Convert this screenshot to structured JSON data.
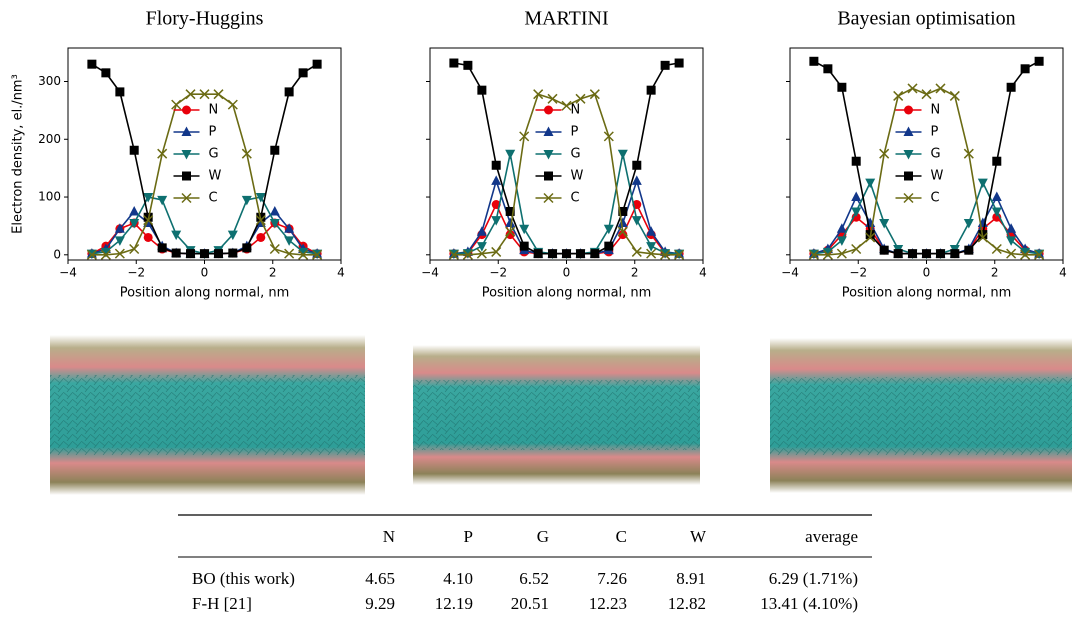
{
  "chart_data": [
    {
      "type": "line",
      "title": "Flory-Huggins",
      "xlabel": "Position along normal, nm",
      "ylabel": "Electron density, el./nm³",
      "x": [
        -3.3,
        -2.89,
        -2.48,
        -2.06,
        -1.65,
        -1.24,
        -0.83,
        -0.41,
        0,
        0.41,
        0.83,
        1.24,
        1.65,
        2.06,
        2.48,
        2.89,
        3.3
      ],
      "xlim": [
        -4,
        4
      ],
      "xticks": [
        {
          "value": -4,
          "label": "−4"
        },
        {
          "value": -2,
          "label": "−2"
        },
        0,
        2,
        4
      ],
      "ylim": [
        -9,
        358
      ],
      "yticks": [
        0,
        100,
        200,
        300
      ],
      "ytick_labels": true,
      "legend": "center",
      "series": [
        {
          "name": "N",
          "color": "#e8000b",
          "marker": "circle",
          "values": [
            2,
            15,
            45,
            55,
            30,
            10,
            3,
            2,
            2,
            2,
            3,
            10,
            30,
            55,
            45,
            15,
            2
          ]
        },
        {
          "name": "P",
          "color": "#12378a",
          "marker": "triangle-up",
          "values": [
            2,
            10,
            45,
            75,
            55,
            15,
            3,
            2,
            2,
            2,
            3,
            15,
            55,
            75,
            45,
            10,
            2
          ]
        },
        {
          "name": "G",
          "color": "#0e7070",
          "marker": "triangle-down",
          "values": [
            2,
            5,
            25,
            55,
            100,
            95,
            35,
            8,
            2,
            8,
            35,
            95,
            100,
            55,
            25,
            5,
            2
          ]
        },
        {
          "name": "W",
          "color": "#000000",
          "marker": "square",
          "values": [
            330,
            315,
            282,
            181,
            65,
            12,
            3,
            2,
            2,
            2,
            3,
            12,
            65,
            181,
            282,
            315,
            330
          ]
        },
        {
          "name": "C",
          "color": "#6b6b14",
          "marker": "x",
          "values": [
            0,
            0,
            2,
            10,
            60,
            175,
            260,
            278,
            278,
            278,
            260,
            175,
            60,
            10,
            2,
            0,
            0
          ]
        }
      ]
    },
    {
      "type": "line",
      "title": "MARTINI",
      "xlabel": "Position along normal, nm",
      "x": [
        -3.3,
        -2.89,
        -2.48,
        -2.06,
        -1.65,
        -1.24,
        -0.83,
        -0.41,
        0,
        0.41,
        0.83,
        1.24,
        1.65,
        2.06,
        2.48,
        2.89,
        3.3
      ],
      "xlim": [
        -4,
        4
      ],
      "xticks": [
        {
          "value": -4,
          "label": "−4"
        },
        {
          "value": -2,
          "label": "−2"
        },
        0,
        2,
        4
      ],
      "ylim": [
        -9,
        358
      ],
      "yticks": [
        0,
        100,
        200,
        300
      ],
      "ytick_labels": false,
      "legend": "center",
      "series": [
        {
          "name": "N",
          "color": "#e8000b",
          "marker": "circle",
          "values": [
            2,
            3,
            35,
            87,
            35,
            5,
            2,
            2,
            2,
            2,
            2,
            5,
            35,
            87,
            35,
            3,
            2
          ]
        },
        {
          "name": "P",
          "color": "#12378a",
          "marker": "triangle-up",
          "values": [
            2,
            5,
            40,
            128,
            55,
            8,
            2,
            2,
            2,
            2,
            2,
            8,
            55,
            128,
            40,
            5,
            2
          ]
        },
        {
          "name": "G",
          "color": "#0e7070",
          "marker": "triangle-down",
          "values": [
            2,
            3,
            15,
            60,
            175,
            45,
            5,
            2,
            2,
            2,
            5,
            45,
            175,
            60,
            15,
            3,
            2
          ]
        },
        {
          "name": "W",
          "color": "#000000",
          "marker": "square",
          "values": [
            332,
            328,
            285,
            155,
            75,
            15,
            2,
            2,
            2,
            2,
            2,
            15,
            75,
            155,
            285,
            328,
            332
          ]
        },
        {
          "name": "C",
          "color": "#6b6b14",
          "marker": "x",
          "values": [
            0,
            0,
            2,
            5,
            40,
            205,
            278,
            270,
            258,
            270,
            278,
            205,
            40,
            5,
            2,
            0,
            0
          ]
        }
      ]
    },
    {
      "type": "line",
      "title": "Bayesian optimisation",
      "xlabel": "Position along normal, nm",
      "x": [
        -3.3,
        -2.89,
        -2.48,
        -2.06,
        -1.65,
        -1.24,
        -0.83,
        -0.41,
        0,
        0.41,
        0.83,
        1.24,
        1.65,
        2.06,
        2.48,
        2.89,
        3.3
      ],
      "xlim": [
        -4,
        4
      ],
      "xticks": [
        {
          "value": -4,
          "label": "−4"
        },
        {
          "value": -2,
          "label": "−2"
        },
        0,
        2,
        4
      ],
      "ylim": [
        -9,
        358
      ],
      "yticks": [
        0,
        100,
        200,
        300
      ],
      "ytick_labels": false,
      "legend": "center",
      "series": [
        {
          "name": "N",
          "color": "#e8000b",
          "marker": "circle",
          "values": [
            2,
            8,
            35,
            65,
            45,
            8,
            2,
            2,
            2,
            2,
            2,
            8,
            45,
            65,
            35,
            8,
            2
          ]
        },
        {
          "name": "P",
          "color": "#12378a",
          "marker": "triangle-up",
          "values": [
            2,
            10,
            45,
            100,
            55,
            10,
            2,
            2,
            2,
            2,
            2,
            10,
            55,
            100,
            45,
            10,
            2
          ]
        },
        {
          "name": "G",
          "color": "#0e7070",
          "marker": "triangle-down",
          "values": [
            2,
            5,
            25,
            75,
            125,
            55,
            10,
            2,
            2,
            2,
            10,
            55,
            125,
            75,
            25,
            5,
            2
          ]
        },
        {
          "name": "W",
          "color": "#000000",
          "marker": "square",
          "values": [
            335,
            322,
            290,
            162,
            35,
            8,
            2,
            2,
            2,
            2,
            2,
            8,
            35,
            162,
            290,
            322,
            335
          ]
        },
        {
          "name": "C",
          "color": "#6b6b14",
          "marker": "x",
          "values": [
            0,
            0,
            2,
            10,
            30,
            175,
            275,
            288,
            278,
            288,
            275,
            175,
            30,
            10,
            2,
            0,
            0
          ]
        }
      ]
    }
  ],
  "table": {
    "columns": [
      "N",
      "P",
      "G",
      "C",
      "W",
      "average"
    ],
    "rows": [
      {
        "label": "BO (this work)",
        "cells": [
          "4.65",
          "4.10",
          "6.52",
          "7.26",
          "8.91",
          "6.29 (1.71%)"
        ]
      },
      {
        "label": "F-H [21]",
        "cells": [
          "9.29",
          "12.19",
          "20.51",
          "12.23",
          "12.82",
          "13.41 (4.10%)"
        ]
      }
    ]
  }
}
